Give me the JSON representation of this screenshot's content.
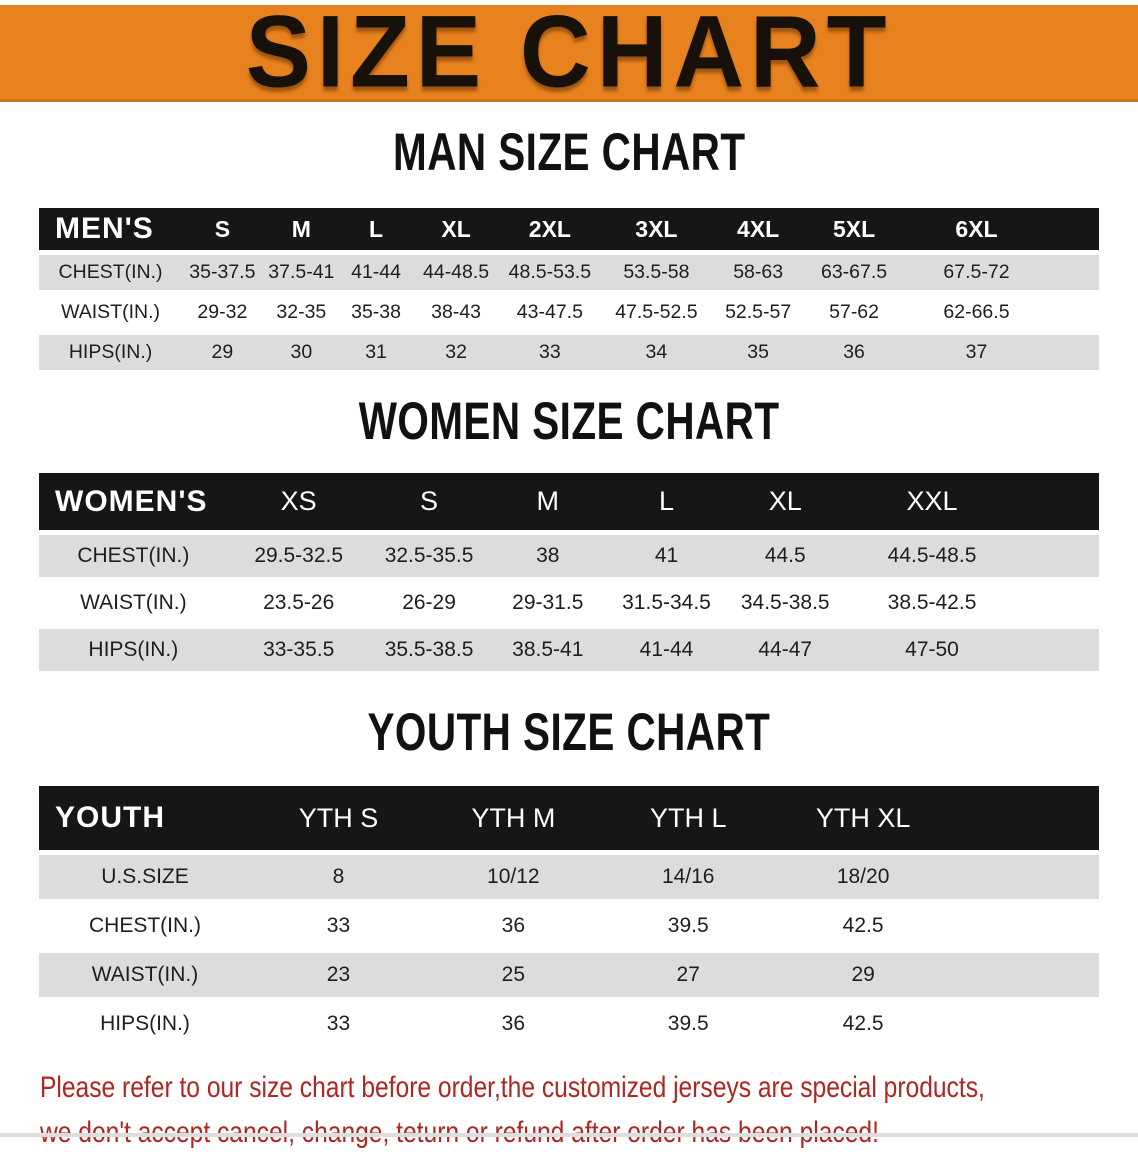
{
  "banner": {
    "title": "SIZE CHART"
  },
  "colors": {
    "banner_orange": "#e8821e",
    "header_black": "#161616",
    "stripe_gray": "#dcdcdc",
    "notice_red": "#ad2723",
    "heading_text": "#111111",
    "header_text": "#ffffff"
  },
  "sections": [
    {
      "id": "man-size-chart",
      "heading": "MAN SIZE CHART",
      "header_label": "MEN'S",
      "columns": [
        "S",
        "M",
        "L",
        "XL",
        "2XL",
        "3XL",
        "4XL",
        "5XL",
        "6XL"
      ],
      "rows": [
        {
          "label": "CHEST(IN.)",
          "values": [
            "35-37.5",
            "37.5-41",
            "41-44",
            "44-48.5",
            "48.5-53.5",
            "53.5-58",
            "58-63",
            "63-67.5",
            "67.5-72"
          ]
        },
        {
          "label": "WAIST(IN.)",
          "values": [
            "29-32",
            "32-35",
            "35-38",
            "38-43",
            "43-47.5",
            "47.5-52.5",
            "52.5-57",
            "57-62",
            "62-66.5"
          ]
        },
        {
          "label": "HIPS(IN.)",
          "values": [
            "29",
            "30",
            "31",
            "32",
            "33",
            "34",
            "35",
            "36",
            "37"
          ]
        }
      ]
    },
    {
      "id": "women-size-chart",
      "heading": "WOMEN SIZE CHART",
      "header_label": "WOMEN'S",
      "columns": [
        "XS",
        "S",
        "M",
        "L",
        "XL",
        "XXL"
      ],
      "rows": [
        {
          "label": "CHEST(IN.)",
          "values": [
            "29.5-32.5",
            "32.5-35.5",
            "38",
            "41",
            "44.5",
            "44.5-48.5"
          ]
        },
        {
          "label": "WAIST(IN.)",
          "values": [
            "23.5-26",
            "26-29",
            "29-31.5",
            "31.5-34.5",
            "34.5-38.5",
            "38.5-42.5"
          ]
        },
        {
          "label": "HIPS(IN.)",
          "values": [
            "33-35.5",
            "35.5-38.5",
            "38.5-41",
            "41-44",
            "44-47",
            "47-50"
          ]
        }
      ]
    },
    {
      "id": "youth-size-chart",
      "heading": "YOUTH SIZE CHART",
      "header_label": "YOUTH",
      "columns": [
        "YTH S",
        "YTH M",
        "YTH L",
        "YTH XL"
      ],
      "rows": [
        {
          "label": "U.S.SIZE",
          "values": [
            "8",
            "10/12",
            "14/16",
            "18/20"
          ]
        },
        {
          "label": "CHEST(IN.)",
          "values": [
            "33",
            "36",
            "39.5",
            "42.5"
          ]
        },
        {
          "label": "WAIST(IN.)",
          "values": [
            "23",
            "25",
            "27",
            "29"
          ]
        },
        {
          "label": "HIPS(IN.)",
          "values": [
            "33",
            "36",
            "39.5",
            "42.5"
          ]
        }
      ]
    }
  ],
  "footer": {
    "line1": "Please refer to our size chart before order,the customized jerseys are special products,",
    "line2": "we don't accept cancel, change, teturn or refund after order has been placed!"
  }
}
